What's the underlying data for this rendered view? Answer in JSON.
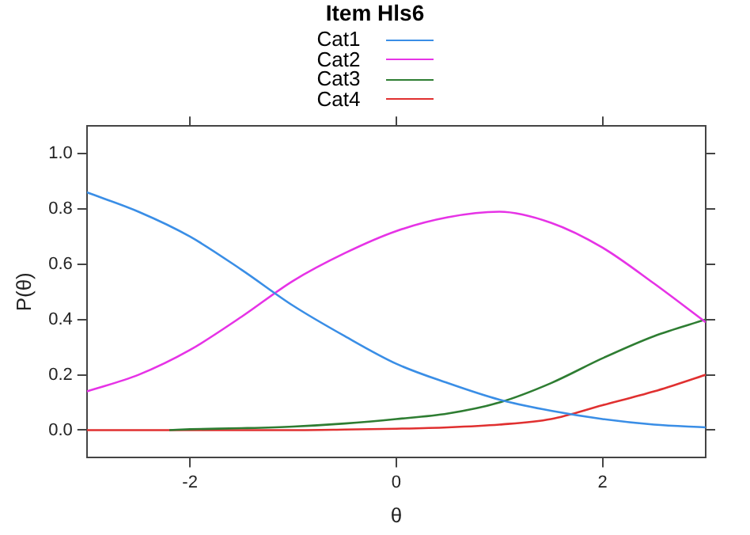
{
  "chart_data": {
    "type": "line",
    "title": "Item Hls6",
    "xlabel": "θ",
    "ylabel": "P(θ)",
    "legend": "top",
    "grid": false,
    "marker": "none",
    "line_style": "solid",
    "xlim": [
      -3,
      3
    ],
    "ylim": [
      -0.1,
      1.1
    ],
    "xticks": [
      -2,
      0,
      2
    ],
    "yticks": [
      {
        "value": 0,
        "label": "0.0"
      },
      {
        "value": 0.2,
        "label": "0.2"
      },
      {
        "value": 0.4,
        "label": "0.4"
      },
      {
        "value": 0.6,
        "label": "0.6"
      },
      {
        "value": 0.8,
        "label": "0.8"
      },
      {
        "value": 1,
        "label": "1.0"
      }
    ],
    "x": [
      -3,
      -2.5,
      -2,
      -1.5,
      -1,
      -0.5,
      0,
      0.5,
      1,
      1.5,
      2,
      2.5,
      3
    ],
    "series": [
      {
        "name": "Cat1",
        "color": "#3a8ee6",
        "values": [
          0.86,
          0.79,
          0.7,
          0.58,
          0.45,
          0.34,
          0.24,
          0.17,
          0.11,
          0.07,
          0.04,
          0.02,
          0.01
        ]
      },
      {
        "name": "Cat2",
        "color": "#e633e6",
        "values": [
          0.14,
          0.2,
          0.29,
          0.41,
          0.54,
          0.64,
          0.72,
          0.77,
          0.79,
          0.75,
          0.66,
          0.53,
          0.39
        ]
      },
      {
        "name": "Cat3",
        "color": "#2e7d32",
        "x": [
          -2.2,
          -2,
          -1.5,
          -1,
          -0.5,
          0,
          0.5,
          1,
          1.5,
          2,
          2.5,
          3
        ],
        "values": [
          0,
          0.003,
          0.007,
          0.013,
          0.024,
          0.04,
          0.06,
          0.1,
          0.17,
          0.26,
          0.34,
          0.4
        ]
      },
      {
        "name": "Cat4",
        "color": "#e03030",
        "values": [
          0,
          0,
          0,
          0,
          0,
          0.002,
          0.005,
          0.01,
          0.02,
          0.04,
          0.09,
          0.14,
          0.2
        ]
      }
    ]
  }
}
